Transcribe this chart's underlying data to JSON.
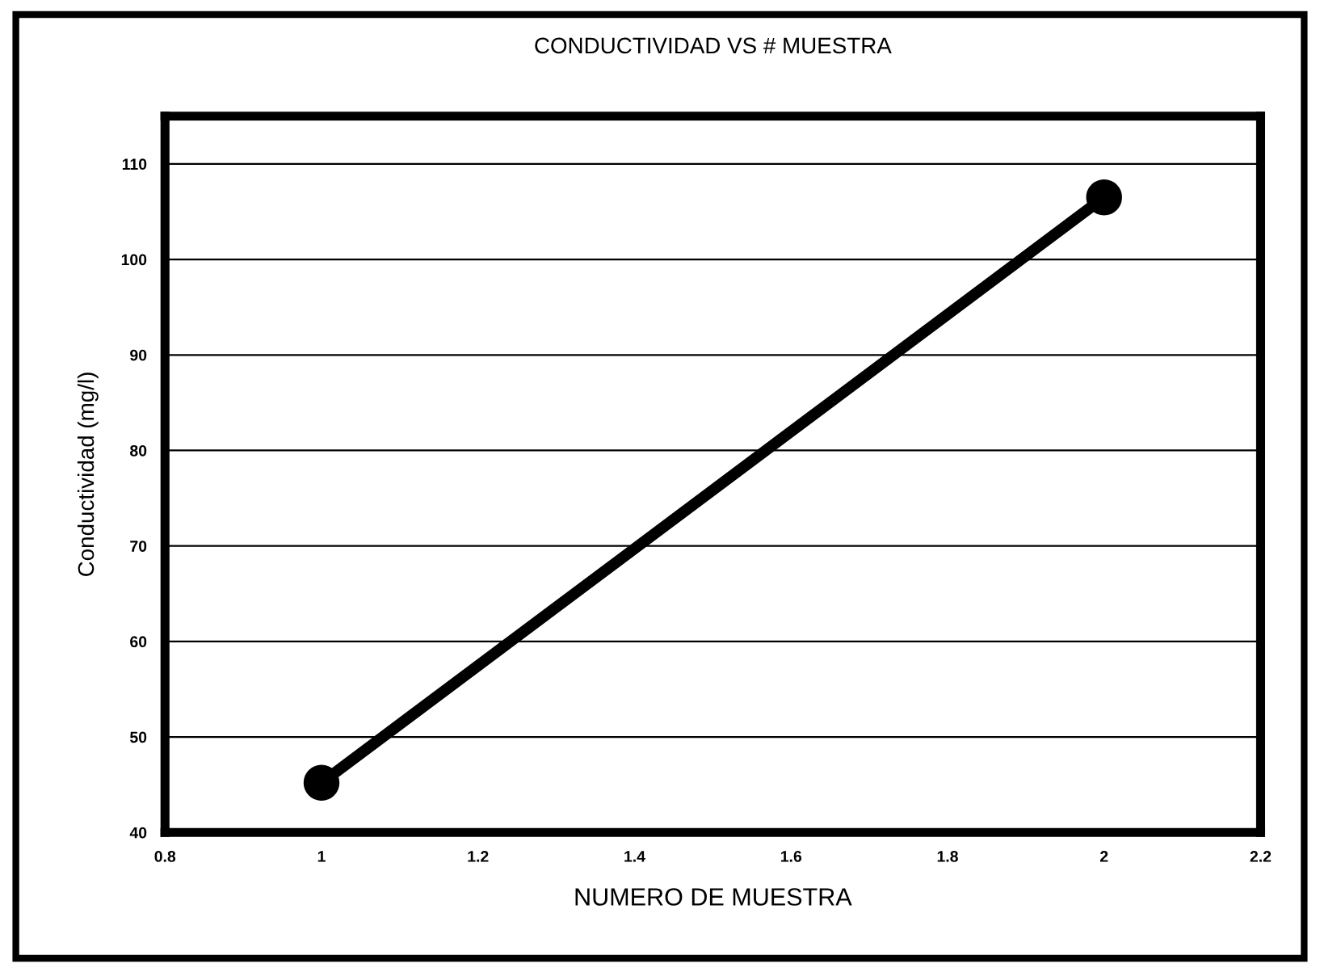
{
  "chart_data": {
    "type": "line",
    "title": "CONDUCTIVIDAD VS # MUESTRA",
    "xlabel": "NUMERO DE MUESTRA",
    "ylabel": "Conductividad (mg/l)",
    "x": [
      1,
      2
    ],
    "series": [
      {
        "color": "#000000",
        "values": [
          45.2,
          106.5
        ]
      }
    ],
    "xlim": [
      0.8,
      2.2
    ],
    "xticks": [
      0.8,
      1,
      1.2,
      1.4,
      1.6,
      1.8,
      2,
      2.2
    ],
    "ylim": [
      40,
      115
    ],
    "yticks": [
      40,
      50,
      60,
      70,
      80,
      90,
      100,
      110
    ],
    "grid": "y",
    "marker": "circle",
    "line_style": "solid",
    "legend": false
  }
}
